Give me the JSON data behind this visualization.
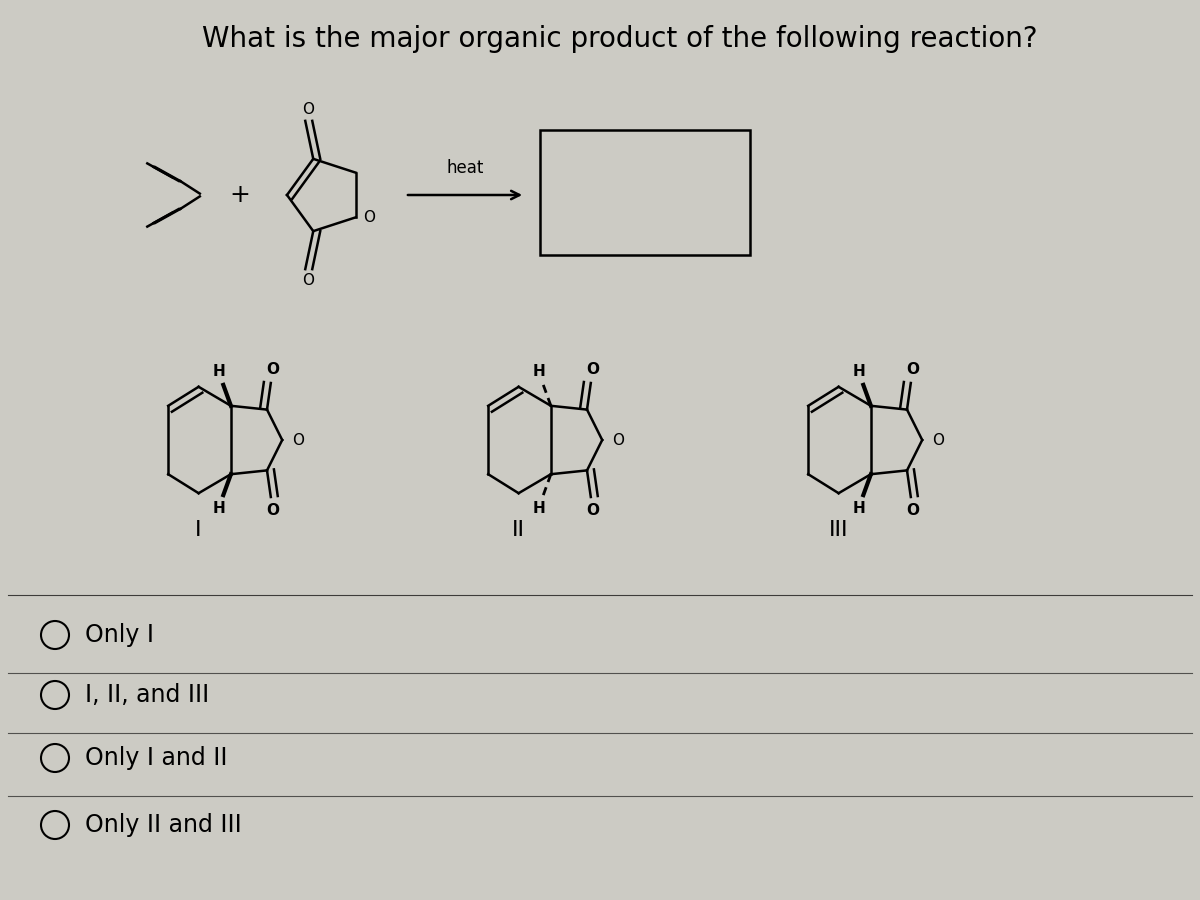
{
  "title": "What is the major organic product of the following reaction?",
  "title_fontsize": 20,
  "background_color": "#cccbc4",
  "choices": [
    "Only I",
    "I, II, and III",
    "Only I and II",
    "Only II and III"
  ],
  "heat_label": "heat",
  "roman_labels": [
    "I",
    "II",
    "III"
  ],
  "text_color": "#000000",
  "answer_text_fontsize": 17
}
